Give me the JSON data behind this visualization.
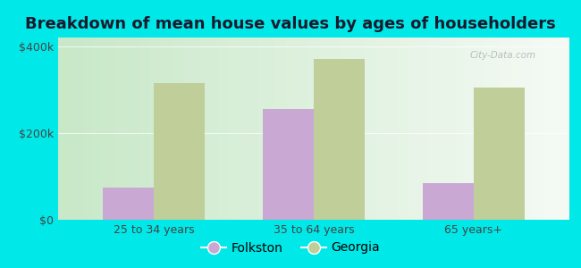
{
  "title": "Breakdown of mean house values by ages of householders",
  "categories": [
    "25 to 34 years",
    "35 to 64 years",
    "65 years+"
  ],
  "folkston_values": [
    75000,
    255000,
    85000
  ],
  "georgia_values": [
    315000,
    370000,
    305000
  ],
  "folkston_color": "#c9a8d4",
  "georgia_color": "#c0ce9a",
  "background_color": "#00e8e8",
  "plot_bg_left": "#c8e8c8",
  "plot_bg_right": "#f5faf5",
  "ylim": [
    0,
    420000
  ],
  "yticks": [
    0,
    200000,
    400000
  ],
  "ytick_labels": [
    "$0",
    "$200k",
    "$400k"
  ],
  "bar_width": 0.32,
  "legend_labels": [
    "Folkston",
    "Georgia"
  ],
  "title_fontsize": 13,
  "tick_fontsize": 9,
  "legend_fontsize": 10,
  "watermark": "City-Data.com"
}
